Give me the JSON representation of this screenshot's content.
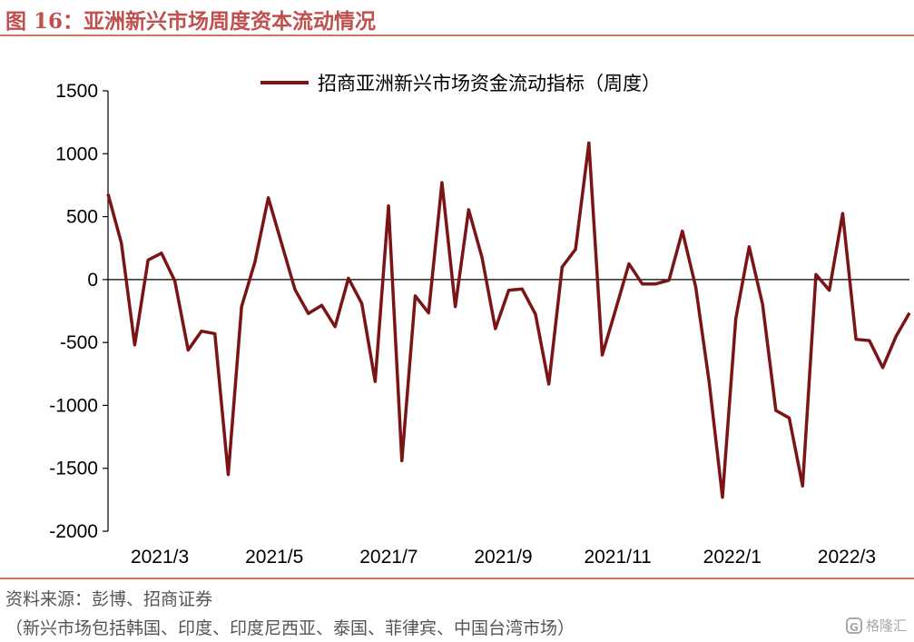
{
  "figure_title": "图 16：亚洲新兴市场周度资本流动情况",
  "source": "资料来源：彭博、招商证券",
  "note": "（新兴市场包括韩国、印度、印度尼西亚、泰国、菲律宾、中国台湾市场）",
  "watermark": "格隆汇",
  "watermark_icon": "G",
  "colors": {
    "accent": "#c0504d",
    "series": "#7b1416",
    "rule": "#c8795a"
  },
  "chart_data": {
    "type": "line",
    "title": "",
    "xlabel": "",
    "ylabel": "",
    "ylim": [
      -2000,
      1500
    ],
    "yticks": [
      1500,
      1000,
      500,
      0,
      -500,
      -1000,
      -1500,
      -2000
    ],
    "xtick_labels": [
      "2021/3",
      "2021/5",
      "2021/7",
      "2021/9",
      "2021/11",
      "2022/1",
      "2022/3"
    ],
    "legend_position": "top",
    "grid": false,
    "zero_line": true,
    "series": [
      {
        "name": "招商亚洲新兴市场资金流动指标（周度）",
        "values": [
          680,
          290,
          -520,
          155,
          210,
          -10,
          -560,
          -410,
          -430,
          -1550,
          -215,
          140,
          650,
          285,
          -80,
          -270,
          -205,
          -375,
          10,
          -190,
          -810,
          585,
          -1440,
          -130,
          -265,
          770,
          -215,
          555,
          175,
          -390,
          -85,
          -75,
          -275,
          -830,
          100,
          240,
          1085,
          -600,
          -240,
          125,
          -35,
          -35,
          -5,
          385,
          -60,
          -810,
          -1730,
          -310,
          260,
          -195,
          -1040,
          -1100,
          -1640,
          40,
          -85,
          525,
          -475,
          -485,
          -700,
          -450,
          -265
        ]
      }
    ]
  }
}
